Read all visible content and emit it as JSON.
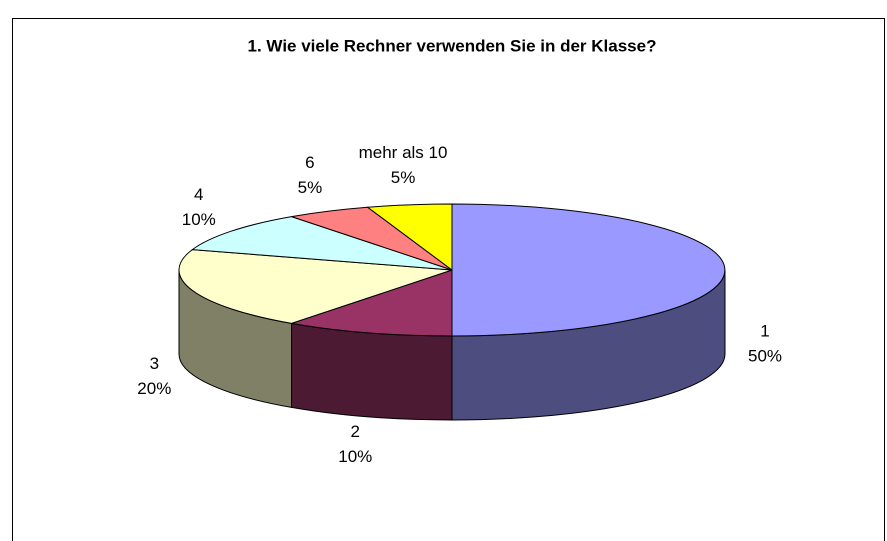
{
  "chart_data": {
    "type": "pie",
    "title": "1. Wie viele Rechner verwenden Sie in der Klasse?",
    "categories": [
      "1",
      "2",
      "3",
      "4",
      "6",
      "mehr als 10"
    ],
    "values": [
      50,
      10,
      20,
      10,
      5,
      5
    ],
    "value_labels": [
      "50%",
      "10%",
      "20%",
      "10%",
      "5%",
      "5%"
    ],
    "colors": [
      "#9999ff",
      "#993366",
      "#ffffcc",
      "#ccffff",
      "#ff8080",
      "#ffff00"
    ]
  }
}
